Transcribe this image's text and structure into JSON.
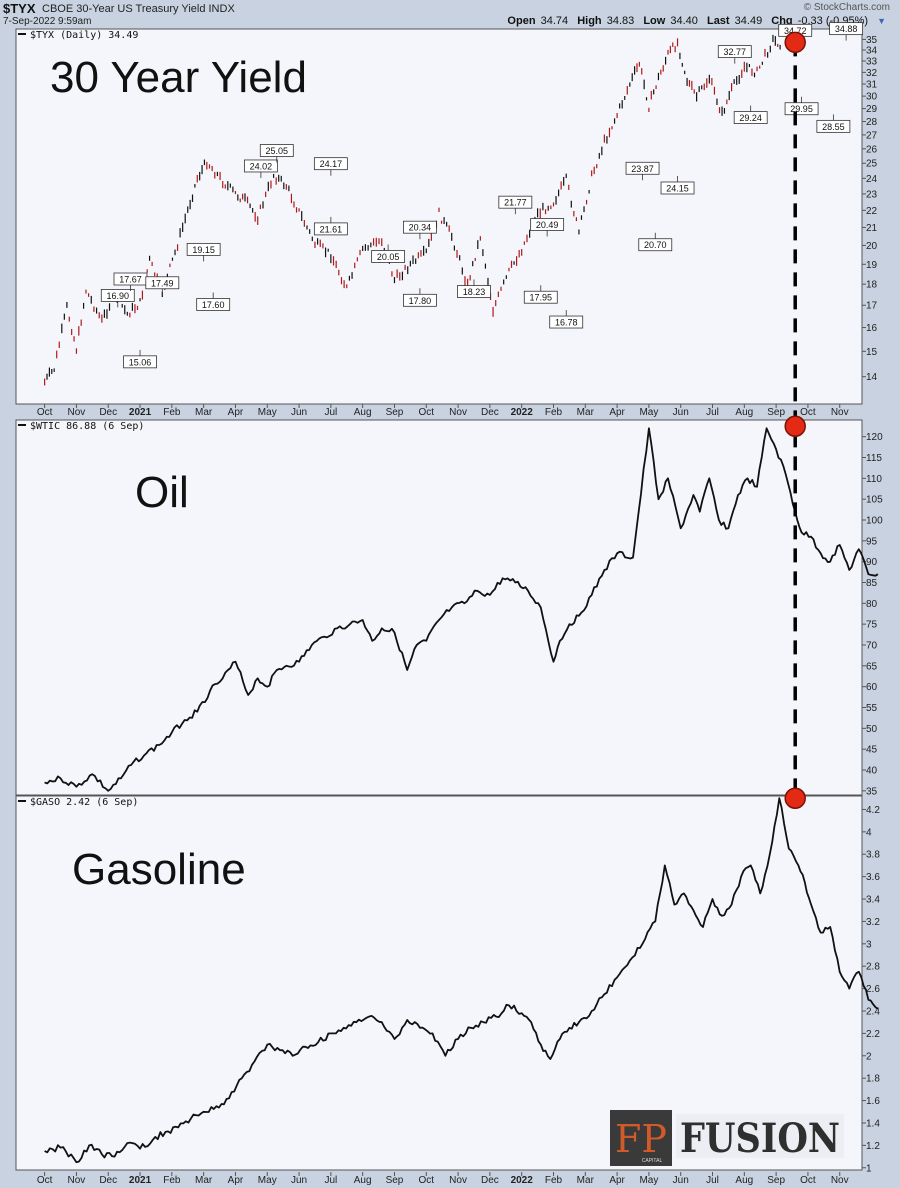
{
  "header": {
    "symbol": "$TYX",
    "name": "CBOE 30-Year US Treasury Yield INDX",
    "date": "7-Sep-2022 9:59am",
    "brand": "© StockCharts.com",
    "open_label": "Open",
    "open": "34.74",
    "high_label": "High",
    "high": "34.83",
    "low_label": "Low",
    "low": "34.40",
    "last_label": "Last",
    "last": "34.49",
    "chg_label": "Chg",
    "chg": "-0.33 (-0.95%)"
  },
  "logo": {
    "mark": "FP",
    "small": "CAPITAL",
    "word": "FUSION"
  },
  "x_axis": {
    "months": [
      "Oct",
      "Nov",
      "Dec",
      "2021",
      "Feb",
      "Mar",
      "Apr",
      "May",
      "Jun",
      "Jul",
      "Aug",
      "Sep",
      "Oct",
      "Nov",
      "Dec",
      "2022",
      "Feb",
      "Mar",
      "Apr",
      "May",
      "Jun",
      "Jul",
      "Aug",
      "Sep",
      "Oct",
      "Nov"
    ],
    "bold": [
      "2021",
      "2022"
    ]
  },
  "chart_data": [
    {
      "type": "line",
      "id": "yield",
      "style": "ohlc",
      "big_label": "30 Year Yield",
      "legend": "$TYX (Daily) 34.49",
      "y_ticks": [
        14,
        15,
        16,
        17,
        18,
        19,
        20,
        21,
        22,
        23,
        24,
        25,
        26,
        27,
        28,
        29,
        30,
        31,
        32,
        33,
        34,
        35
      ],
      "ylim": [
        13,
        36
      ],
      "y_scale": "log",
      "x": [
        0,
        0.3,
        0.7,
        1.0,
        1.3,
        1.8,
        2.2,
        2.6,
        3.0,
        3.3,
        3.7,
        4.1,
        4.5,
        4.8,
        5.1,
        5.6,
        6.0,
        6.3,
        6.7,
        7.2,
        7.6,
        8.0,
        8.5,
        9.0,
        9.5,
        10.0,
        10.6,
        11.0,
        11.5,
        12.0,
        12.4,
        12.8,
        13.3,
        13.7,
        14.1,
        14.6,
        15.0,
        15.5,
        16.0,
        16.4,
        16.8,
        17.2,
        17.6,
        18.0,
        18.4,
        18.7,
        19.0,
        19.3,
        19.6,
        19.9,
        20.2,
        20.5,
        20.9,
        21.3,
        21.6,
        22.0,
        22.4,
        22.9,
        23.2
      ],
      "values": [
        13.8,
        14.3,
        16.9,
        15.1,
        17.7,
        16.3,
        17.5,
        16.6,
        17.1,
        19.2,
        17.6,
        19.6,
        22.0,
        24.0,
        25.1,
        23.8,
        23.0,
        22.6,
        21.6,
        24.2,
        23.5,
        21.9,
        20.1,
        19.5,
        17.8,
        19.8,
        20.3,
        18.2,
        19.0,
        19.6,
        21.8,
        20.5,
        17.95,
        20.5,
        16.8,
        18.6,
        19.8,
        21.8,
        22.5,
        23.9,
        20.7,
        24.1,
        26.5,
        28.5,
        31.0,
        32.8,
        29.2,
        31.5,
        33.6,
        34.7,
        31.3,
        29.95,
        31.5,
        28.55,
        30.5,
        32.5,
        32.0,
        34.9,
        34.49
      ],
      "annotations": [
        {
          "x": 2.3,
          "v": "16.90",
          "pos": "above"
        },
        {
          "x": 2.7,
          "v": "17.67",
          "pos": "above"
        },
        {
          "x": 3.0,
          "v": "15.06",
          "pos": "below"
        },
        {
          "x": 3.7,
          "v": "17.49",
          "pos": "above"
        },
        {
          "x": 5.0,
          "v": "19.15",
          "pos": "above"
        },
        {
          "x": 5.3,
          "v": "17.60",
          "pos": "below"
        },
        {
          "x": 6.8,
          "v": "24.02",
          "pos": "above"
        },
        {
          "x": 7.3,
          "v": "25.05",
          "pos": "above"
        },
        {
          "x": 9.0,
          "v": "24.17",
          "pos": "above"
        },
        {
          "x": 9.0,
          "v": "21.61",
          "pos": "below"
        },
        {
          "x": 10.8,
          "v": "20.05",
          "pos": "below"
        },
        {
          "x": 11.8,
          "v": "20.34",
          "pos": "above"
        },
        {
          "x": 11.8,
          "v": "17.80",
          "pos": "below"
        },
        {
          "x": 13.5,
          "v": "18.23",
          "pos": "below"
        },
        {
          "x": 14.8,
          "v": "21.77",
          "pos": "above"
        },
        {
          "x": 15.8,
          "v": "20.49",
          "pos": "above"
        },
        {
          "x": 15.6,
          "v": "17.95",
          "pos": "below"
        },
        {
          "x": 16.4,
          "v": "16.78",
          "pos": "below"
        },
        {
          "x": 18.8,
          "v": "23.87",
          "pos": "above"
        },
        {
          "x": 19.2,
          "v": "20.70",
          "pos": "below"
        },
        {
          "x": 19.9,
          "v": "24.15",
          "pos": "below"
        },
        {
          "x": 21.7,
          "v": "32.77",
          "pos": "above"
        },
        {
          "x": 22.2,
          "v": "29.24",
          "pos": "below"
        },
        {
          "x": 23.6,
          "v": "34.72",
          "pos": "above"
        },
        {
          "x": 23.8,
          "v": "29.95",
          "pos": "below"
        },
        {
          "x": 24.8,
          "v": "28.55",
          "pos": "below"
        },
        {
          "x": 25.2,
          "v": "34.88",
          "pos": "above"
        }
      ],
      "peak": {
        "x": 23.6,
        "v": 34.72
      }
    },
    {
      "type": "line",
      "id": "oil",
      "big_label": "Oil",
      "legend": "$WTIC 86.88 (6 Sep)",
      "y_ticks": [
        35,
        40,
        45,
        50,
        55,
        60,
        65,
        70,
        75,
        80,
        85,
        90,
        95,
        100,
        105,
        110,
        115,
        120
      ],
      "ylim": [
        34,
        124
      ],
      "x": [
        0,
        0.5,
        1.0,
        1.5,
        2.0,
        2.4,
        2.8,
        3.2,
        3.6,
        4.0,
        4.4,
        4.8,
        5.2,
        5.6,
        6.0,
        6.4,
        6.7,
        7.0,
        7.3,
        7.6,
        8.0,
        8.4,
        8.8,
        9.2,
        9.6,
        10.0,
        10.3,
        10.6,
        11.0,
        11.4,
        11.7,
        12.0,
        12.4,
        12.8,
        13.2,
        13.6,
        14.0,
        14.4,
        14.8,
        15.2,
        15.6,
        16.0,
        16.2,
        16.5,
        16.8,
        17.2,
        17.6,
        18.0,
        18.5,
        19.0,
        19.3,
        19.6,
        20.0,
        20.4,
        20.6,
        20.9,
        21.2,
        21.5,
        21.8,
        22.1,
        22.4,
        22.7,
        23.0,
        23.3,
        23.6,
        23.8,
        24.1,
        24.4,
        24.7,
        25.0,
        25.3,
        25.6,
        25.9,
        26.2
      ],
      "values": [
        37,
        38,
        36,
        39,
        35,
        38,
        42,
        44,
        46,
        49,
        52,
        54,
        59,
        62,
        66,
        58,
        62,
        60,
        64,
        65,
        66,
        70,
        72,
        74,
        75,
        76,
        71,
        74,
        73,
        64,
        70,
        71,
        76,
        79,
        80,
        83,
        82,
        86,
        85,
        83,
        79,
        66,
        71,
        75,
        77,
        82,
        88,
        92,
        91,
        122,
        105,
        110,
        98,
        106,
        102,
        110,
        100,
        98,
        106,
        110,
        108,
        122,
        117,
        111,
        102,
        97,
        96,
        92,
        90,
        94,
        88,
        93,
        87,
        87
      ],
      "peak": {
        "x": 23.7,
        "v": 122.5
      }
    },
    {
      "type": "line",
      "id": "gasoline",
      "big_label": "Gasoline",
      "legend": "$GASO 2.42 (6 Sep)",
      "y_ticks": [
        1.0,
        1.2,
        1.4,
        1.6,
        1.8,
        2.0,
        2.2,
        2.4,
        2.6,
        2.8,
        3.0,
        3.2,
        3.4,
        3.6,
        3.8,
        4.0,
        4.2
      ],
      "ylim": [
        0.98,
        4.32
      ],
      "x": [
        0,
        0.5,
        1.0,
        1.4,
        1.8,
        2.2,
        2.6,
        3.0,
        3.4,
        3.8,
        4.2,
        4.6,
        5.0,
        5.4,
        5.8,
        6.2,
        6.6,
        7.0,
        7.4,
        7.8,
        8.2,
        8.6,
        9.0,
        9.4,
        9.8,
        10.2,
        10.6,
        11.0,
        11.4,
        11.8,
        12.2,
        12.6,
        13.0,
        13.4,
        13.8,
        14.2,
        14.6,
        15.0,
        15.3,
        15.6,
        15.9,
        16.2,
        16.5,
        16.8,
        17.2,
        17.6,
        18.0,
        18.4,
        18.8,
        19.2,
        19.5,
        19.8,
        20.1,
        20.4,
        20.7,
        21.0,
        21.3,
        21.6,
        21.9,
        22.2,
        22.5,
        22.8,
        23.1,
        23.4,
        23.7,
        23.9,
        24.1,
        24.4,
        24.7,
        25.0,
        25.3,
        25.6,
        25.9,
        26.2
      ],
      "values": [
        1.15,
        1.18,
        1.05,
        1.2,
        1.12,
        1.1,
        1.22,
        1.17,
        1.25,
        1.32,
        1.36,
        1.44,
        1.5,
        1.55,
        1.62,
        1.8,
        1.95,
        2.1,
        2.05,
        2.0,
        2.08,
        2.12,
        2.2,
        2.25,
        2.3,
        2.35,
        2.3,
        2.15,
        2.32,
        2.25,
        2.2,
        2.0,
        2.15,
        2.25,
        2.3,
        2.35,
        2.45,
        2.38,
        2.3,
        2.1,
        1.97,
        2.15,
        2.25,
        2.3,
        2.4,
        2.55,
        2.7,
        2.85,
        3.0,
        3.2,
        3.7,
        3.35,
        3.45,
        3.3,
        3.15,
        3.4,
        3.25,
        3.35,
        3.6,
        3.7,
        3.45,
        3.8,
        4.3,
        3.85,
        3.7,
        3.55,
        3.35,
        3.1,
        3.15,
        2.75,
        2.6,
        2.75,
        2.5,
        2.42
      ],
      "peak": {
        "x": 23.5,
        "v": 4.3
      }
    }
  ]
}
